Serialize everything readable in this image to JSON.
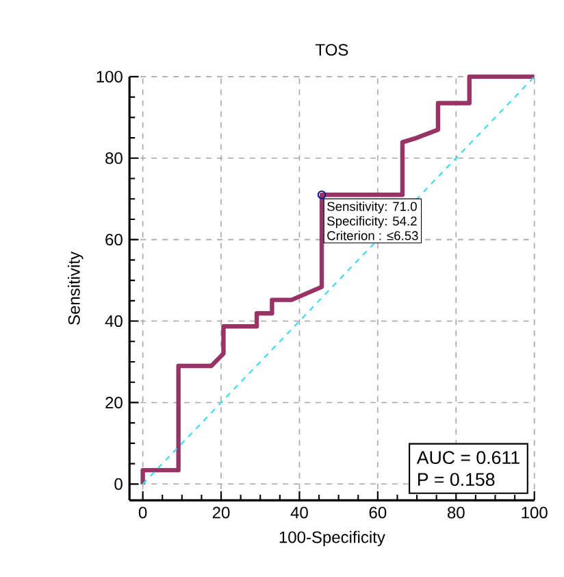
{
  "chart_data": {
    "type": "line",
    "title": "TOS",
    "xlabel": "100-Specificity",
    "ylabel": "Sensitivity",
    "xlim": [
      -3.4,
      100
    ],
    "ylim": [
      -4,
      100
    ],
    "xticks": [
      0,
      20,
      40,
      60,
      80,
      100
    ],
    "yticks": [
      0,
      20,
      40,
      60,
      80,
      100
    ],
    "grid": true,
    "series": [
      {
        "color": "#993366",
        "line_style": "solid",
        "x": [
          0,
          0,
          9.1,
          9.1,
          17.5,
          20.6,
          20.6,
          29.1,
          29.1,
          33,
          33,
          38,
          45.7,
          45.7,
          66.3,
          66.3,
          70,
          75.4,
          75.4,
          83.4,
          83.4,
          100
        ],
        "values": [
          0,
          3.4,
          3.4,
          29,
          29,
          32,
          38.7,
          38.7,
          41.9,
          41.9,
          45.2,
          45.2,
          48.4,
          71,
          71,
          83.9,
          85,
          87,
          93.5,
          93.5,
          100,
          100
        ]
      },
      {
        "color": "#33ddee",
        "line_style": "dashed",
        "x": [
          0,
          100
        ],
        "values": [
          0,
          100
        ]
      },
      {
        "type": "scatter",
        "color": "#1a1a8c",
        "marker": "circle",
        "x": [
          45.7
        ],
        "values": [
          71
        ]
      }
    ],
    "annotations": [
      "AUC = 0.611",
      "P = 0.158",
      {
        "text": "Sensitivity: 71.0",
        "x": 45.7,
        "y": 71
      },
      "Specificity: 54.2",
      "Criterion : ≤6.53"
    ]
  }
}
